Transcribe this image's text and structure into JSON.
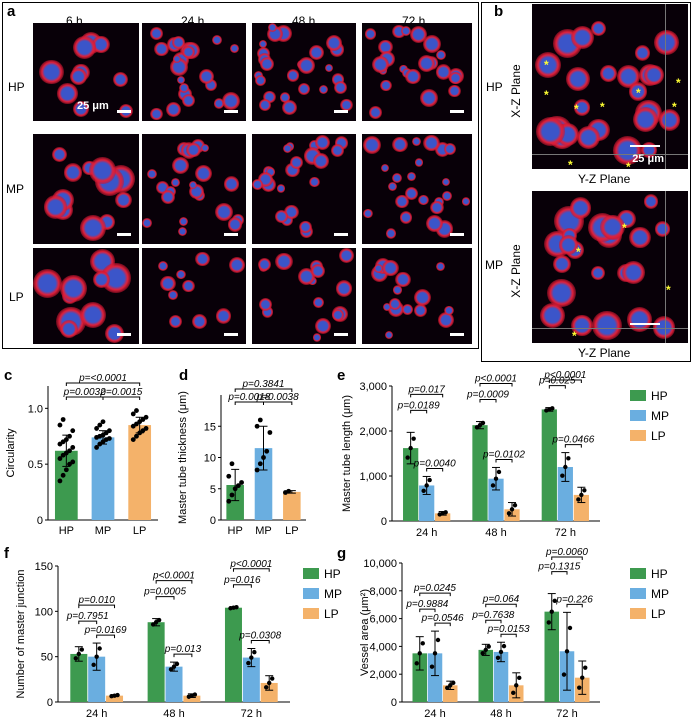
{
  "panel_a": {
    "letter": "a",
    "time_labels": [
      "6 h",
      "24 h",
      "48 h",
      "72 h"
    ],
    "row_labels": [
      "HP",
      "MP",
      "LP"
    ],
    "scale_text": "25 μm"
  },
  "panel_b": {
    "letter": "b",
    "row_labels": [
      "HP",
      "MP"
    ],
    "xz_label": "X-Z Plane",
    "yz_label": "Y-Z Plane",
    "scale_text": "25 μm",
    "star": "*"
  },
  "colors": {
    "HP": "#3d9a4f",
    "MP": "#6aaee0",
    "LP": "#f4b26a",
    "nucleus": "#3b55c9",
    "actin": "#e0203a"
  },
  "chart_data": [
    {
      "letter": "c",
      "type": "bar",
      "ylabel": "Circularity",
      "categories": [
        "HP",
        "MP",
        "LP"
      ],
      "values": [
        0.62,
        0.74,
        0.85
      ],
      "errors": [
        0.14,
        0.06,
        0.07
      ],
      "ylim": [
        0,
        1.2
      ],
      "yticks": [
        "0",
        "0.5",
        "1.0"
      ],
      "points": [
        [
          0.35,
          0.4,
          0.45,
          0.5,
          0.52,
          0.55,
          0.58,
          0.6,
          0.62,
          0.65,
          0.68,
          0.7,
          0.72,
          0.75,
          0.8,
          0.85,
          0.9
        ],
        [
          0.65,
          0.68,
          0.7,
          0.72,
          0.73,
          0.74,
          0.75,
          0.76,
          0.78,
          0.8,
          0.82,
          0.85,
          0.88
        ],
        [
          0.72,
          0.75,
          0.78,
          0.8,
          0.82,
          0.84,
          0.86,
          0.88,
          0.9,
          0.92,
          0.95,
          0.98
        ]
      ],
      "pvalues": [
        "p=<0.0001",
        "p=0.0032",
        "p=0.0015"
      ]
    },
    {
      "letter": "d",
      "type": "bar",
      "ylabel": "Master tube thickness (μm)",
      "categories": [
        "HP",
        "MP",
        "LP"
      ],
      "values": [
        5.6,
        11.5,
        4.5
      ],
      "errors": [
        2.5,
        3.5,
        0.2
      ],
      "ylim": [
        0,
        20
      ],
      "yticks": [
        "0",
        "5",
        "10",
        "15"
      ],
      "points": [
        [
          3,
          4,
          5,
          5.5,
          6,
          7,
          9
        ],
        [
          8,
          9,
          10,
          11,
          14,
          15,
          16
        ],
        [
          4.4,
          4.6
        ]
      ],
      "pvalues": [
        "p=0.3841",
        "p=0.0018",
        "p=0.0038"
      ]
    },
    {
      "letter": "e",
      "type": "bar",
      "ylabel": "Master tube length (μm)",
      "categories": [
        "24 h",
        "48 h",
        "72 h"
      ],
      "series": [
        {
          "name": "HP",
          "values": [
            1620,
            2130,
            2480
          ],
          "errors": [
            350,
            80,
            40
          ]
        },
        {
          "name": "MP",
          "values": [
            790,
            940,
            1200
          ],
          "errors": [
            200,
            250,
            320
          ]
        },
        {
          "name": "LP",
          "values": [
            170,
            260,
            580
          ],
          "errors": [
            40,
            150,
            170
          ]
        }
      ],
      "ylim": [
        0,
        3000
      ],
      "yticks": [
        "0",
        "1,000",
        "2,000",
        "3,000"
      ],
      "pvalues": [
        [
          "p=0.017",
          "p=0.0189",
          "p=0.0040"
        ],
        [
          "p<0.0001",
          "p=0.0009",
          "p=0.0102"
        ],
        [
          "p<0.0001",
          "p=0.025",
          "p=0.0466"
        ]
      ]
    },
    {
      "letter": "f",
      "type": "bar",
      "ylabel": "Number of master junction",
      "categories": [
        "24 h",
        "48 h",
        "72 h"
      ],
      "series": [
        {
          "name": "HP",
          "values": [
            53,
            88,
            104
          ],
          "errors": [
            8,
            4,
            1
          ]
        },
        {
          "name": "MP",
          "values": [
            50,
            39,
            49
          ],
          "errors": [
            15,
            5,
            10
          ]
        },
        {
          "name": "LP",
          "values": [
            7,
            7,
            21
          ],
          "errors": [
            1,
            2,
            8
          ]
        }
      ],
      "ylim": [
        0,
        150
      ],
      "yticks": [
        "0",
        "50",
        "100",
        "150"
      ],
      "pvalues": [
        [
          "p=0.010",
          "p=0.7951",
          "p=0.0169"
        ],
        [
          "p<0.0001",
          "p=0.0005",
          "p=0.013"
        ],
        [
          "p<0.0001",
          "p=0.016",
          "p=0.0308"
        ]
      ]
    },
    {
      "letter": "g",
      "type": "bar",
      "ylabel": "Vessel area (μm²)",
      "categories": [
        "24 h",
        "48 h",
        "72 h"
      ],
      "series": [
        {
          "name": "HP",
          "values": [
            3500,
            3750,
            6500
          ],
          "errors": [
            1200,
            400,
            1300
          ]
        },
        {
          "name": "MP",
          "values": [
            3500,
            3600,
            3650
          ],
          "errors": [
            1600,
            700,
            2800
          ]
        },
        {
          "name": "LP",
          "values": [
            1200,
            1200,
            1750
          ],
          "errors": [
            300,
            900,
            1200
          ]
        }
      ],
      "ylim": [
        0,
        10000
      ],
      "yticks": [
        "0",
        "2,000",
        "4,000",
        "6,000",
        "8,000",
        "10,000"
      ],
      "pvalues": [
        [
          "p=0.0245",
          "p=0.9884",
          "p=0.0546"
        ],
        [
          "p=0.064",
          "p=0.7638",
          "p=0.0153"
        ],
        [
          "p=0.0060",
          "p=0.1315",
          "p=0.226"
        ]
      ]
    }
  ]
}
